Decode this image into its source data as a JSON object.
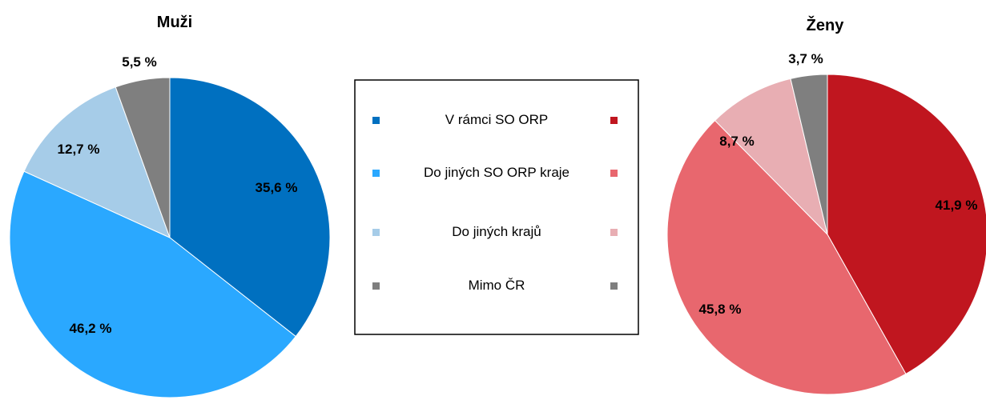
{
  "legend": {
    "items": [
      {
        "label": "V rámci SO ORP",
        "color_left": "#0070C0",
        "color_right": "#C0161F"
      },
      {
        "label": "Do jiných SO ORP kraje",
        "color_left": "#2AA8FF",
        "color_right": "#E8676E"
      },
      {
        "label": "Do jiných krajů",
        "color_left": "#A6CCE8",
        "color_right": "#E8AEB3"
      },
      {
        "label": "Mimo ČR",
        "color_left": "#7F7F7F",
        "color_right": "#7F7F7F"
      }
    ]
  },
  "chart_data": [
    {
      "type": "pie",
      "title": "Muži",
      "categories": [
        "V rámci SO ORP",
        "Do jiných SO ORP kraje",
        "Do jiných krajů",
        "Mimo ČR"
      ],
      "values": [
        35.6,
        46.2,
        12.7,
        5.5
      ],
      "labels": [
        "35,6 %",
        "46,2 %",
        "12,7 %",
        "5,5 %"
      ],
      "colors": [
        "#0070C0",
        "#2AA8FF",
        "#A6CCE8",
        "#7F7F7F"
      ]
    },
    {
      "type": "pie",
      "title": "Ženy",
      "categories": [
        "V rámci SO ORP",
        "Do jiných SO ORP kraje",
        "Do jiných krajů",
        "Mimo ČR"
      ],
      "values": [
        41.9,
        45.8,
        8.7,
        3.7
      ],
      "labels": [
        "41,9 %",
        "45,8 %",
        "8,7 %",
        "3,7 %"
      ],
      "colors": [
        "#C0161F",
        "#E8676E",
        "#E8AEB3",
        "#7F7F7F"
      ]
    }
  ]
}
